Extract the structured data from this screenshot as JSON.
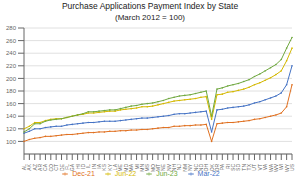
{
  "chart_data": {
    "type": "line",
    "title": "Purchase Applications Payment Index by State",
    "subtitle": "(March 2012 = 100)",
    "categories": [
      "AL",
      "AK",
      "AZ",
      "AR",
      "CA",
      "CO",
      "CT",
      "DE",
      "FL",
      "GA",
      "HI",
      "ID",
      "IL",
      "IN",
      "IA",
      "KS",
      "KY",
      "LA",
      "ME",
      "MD",
      "MA",
      "MI",
      "MN",
      "MS",
      "MO",
      "MT",
      "NE",
      "NV",
      "NH",
      "NJ",
      "NM",
      "NY",
      "NC",
      "ND",
      "OH",
      "OK",
      "OR",
      "PA",
      "RI",
      "SC",
      "SD",
      "TN",
      "TX",
      "UT",
      "VT",
      "VA",
      "WA",
      "WV",
      "WI",
      "WY",
      "US"
    ],
    "series": [
      {
        "name": "Dec-21",
        "color": "#E07020",
        "values": [
          100,
          103,
          105,
          106,
          108,
          108,
          109,
          110,
          111,
          111,
          112,
          113,
          114,
          114,
          115,
          115,
          116,
          116,
          117,
          117,
          118,
          118,
          119,
          119,
          120,
          121,
          122,
          122,
          124,
          124,
          125,
          125,
          126,
          126,
          127,
          100,
          128,
          129,
          130,
          130,
          131,
          132,
          133,
          135,
          136,
          138,
          140,
          142,
          145,
          155,
          190
        ]
      },
      {
        "name": "Mar-22",
        "color": "#4472C4",
        "values": [
          113,
          116,
          120,
          120,
          122,
          123,
          124,
          124,
          126,
          127,
          128,
          129,
          130,
          130,
          131,
          132,
          132,
          132,
          133,
          134,
          135,
          136,
          137,
          137,
          138,
          139,
          140,
          141,
          143,
          144,
          144,
          145,
          146,
          147,
          148,
          115,
          150,
          151,
          153,
          154,
          155,
          156,
          158,
          161,
          163,
          166,
          169,
          172,
          177,
          190,
          220
        ]
      },
      {
        "name": "Jun-22",
        "color": "#D4B800",
        "values": [
          120,
          124,
          130,
          130,
          133,
          135,
          136,
          136,
          138,
          140,
          142,
          143,
          145,
          145,
          146,
          147,
          148,
          148,
          150,
          151,
          152,
          153,
          155,
          155,
          156,
          158,
          160,
          162,
          164,
          165,
          166,
          167,
          168,
          170,
          171,
          135,
          174,
          175,
          178,
          179,
          181,
          183,
          186,
          190,
          193,
          197,
          201,
          206,
          212,
          228,
          248
        ]
      },
      {
        "name": "Jun-23",
        "color": "#70A840",
        "values": [
          115,
          120,
          128,
          128,
          132,
          134,
          135,
          136,
          138,
          140,
          142,
          144,
          147,
          147,
          148,
          149,
          150,
          150,
          152,
          154,
          156,
          157,
          159,
          160,
          161,
          163,
          165,
          168,
          170,
          172,
          173,
          174,
          176,
          178,
          180,
          140,
          183,
          185,
          188,
          190,
          192,
          195,
          198,
          203,
          207,
          212,
          217,
          222,
          230,
          248,
          265
        ]
      }
    ],
    "ylim": [
      80,
      280
    ],
    "yticks": [
      100,
      120,
      140,
      160,
      180,
      200,
      220,
      240,
      260,
      280
    ],
    "grid": true,
    "legend": "bottom",
    "marker": "circle"
  }
}
